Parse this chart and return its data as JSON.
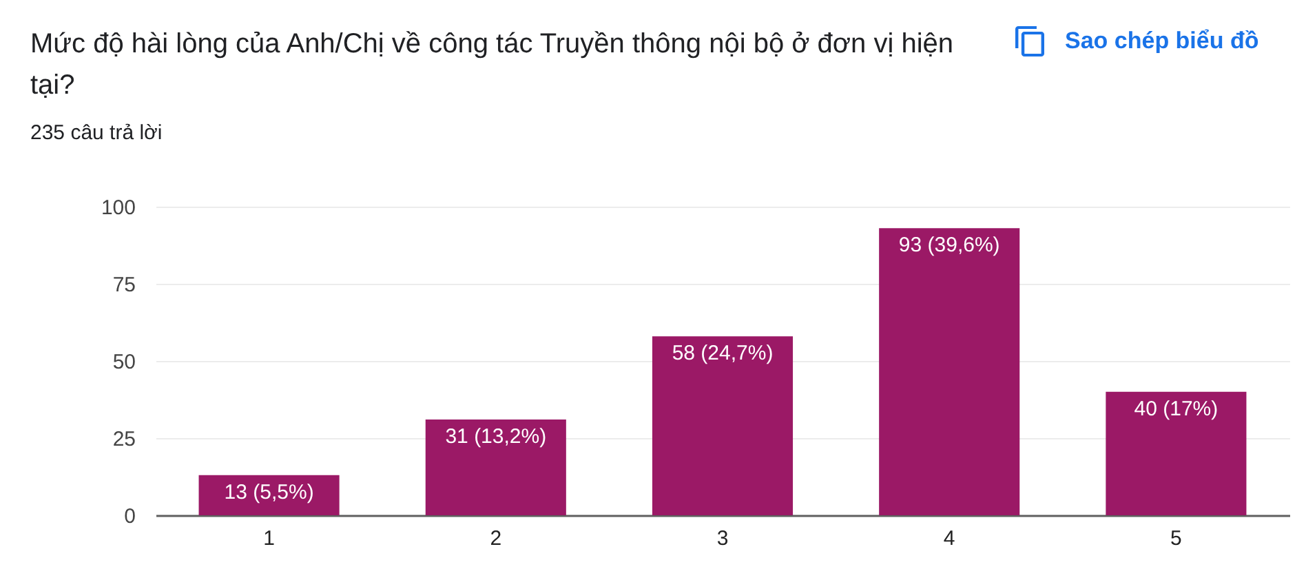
{
  "chart_data": {
    "type": "bar",
    "title": "Mức độ hài lòng của Anh/Chị về công tác Truyền thông nội bộ ở đơn vị hiện tại?",
    "subtitle": "235 câu trả lời",
    "annotations": [
      "Sao chép biểu đồ"
    ],
    "categories": [
      "1",
      "2",
      "3",
      "4",
      "5"
    ],
    "values": [
      13,
      31,
      58,
      93,
      40
    ],
    "value_labels": [
      "13 (5,5%)",
      "31 (13,2%)",
      "58 (24,7%)",
      "93 (39,6%)",
      "40 (17%)"
    ],
    "color": "#9b1966",
    "ylim": [
      0,
      100
    ],
    "yticks": [
      0,
      25,
      50,
      75,
      100
    ],
    "grid": "y"
  }
}
